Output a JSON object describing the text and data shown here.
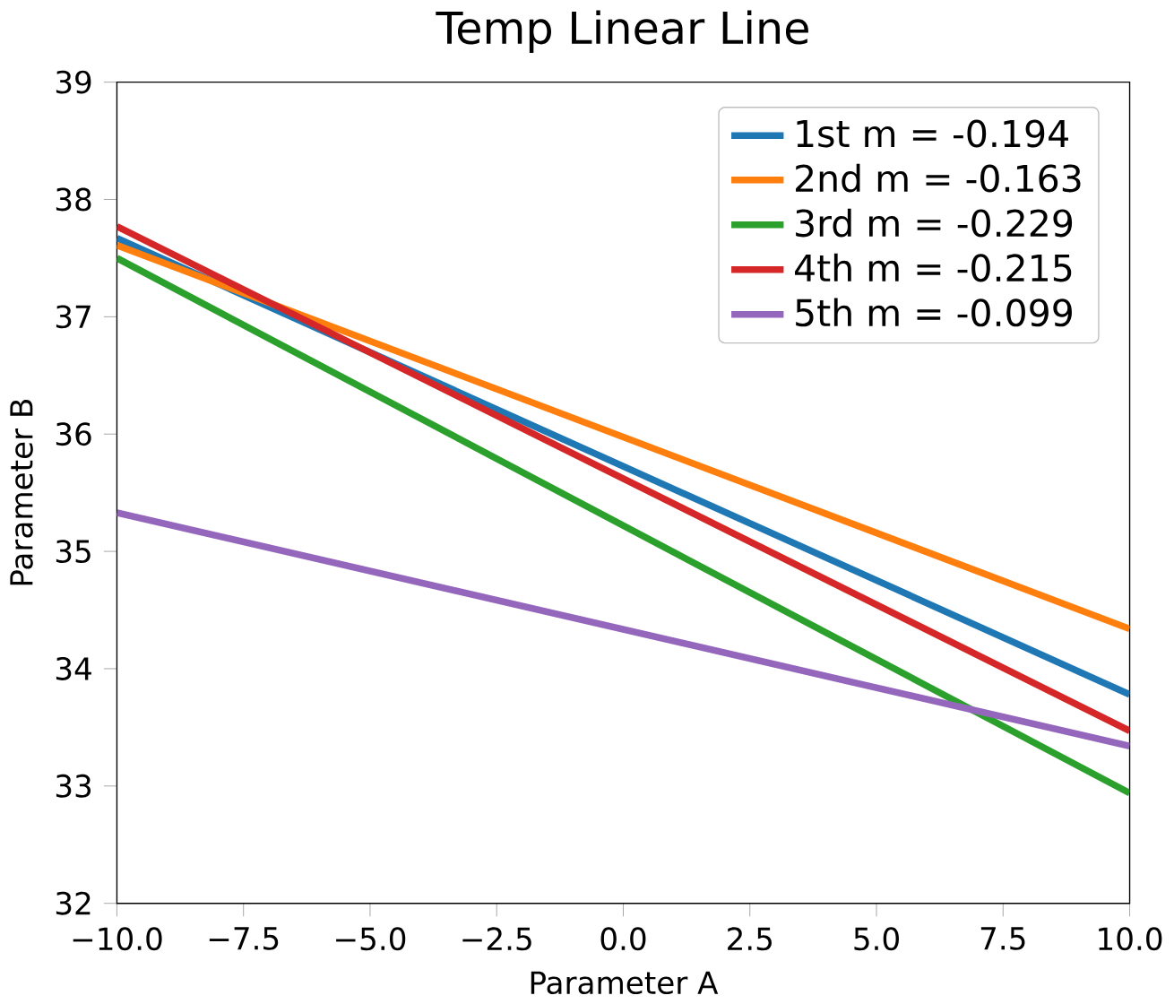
{
  "chart_data": {
    "type": "line",
    "title": "Temp Linear Line",
    "xlabel": "Parameter A",
    "ylabel": "Parameter B",
    "x": [
      -10,
      10
    ],
    "series": [
      {
        "name": "1st m = -0.194",
        "color": "#1f77b4",
        "values": [
          37.67,
          33.78
        ]
      },
      {
        "name": "2nd m = -0.163",
        "color": "#ff7f0e",
        "values": [
          37.61,
          34.34
        ]
      },
      {
        "name": "3rd m = -0.229",
        "color": "#2ca02c",
        "values": [
          37.5,
          32.94
        ]
      },
      {
        "name": "4th m = -0.215",
        "color": "#d62728",
        "values": [
          37.77,
          33.47
        ]
      },
      {
        "name": "5th m = -0.099",
        "color": "#9467bd",
        "values": [
          35.33,
          33.34
        ]
      }
    ],
    "xlim": [
      -10,
      10
    ],
    "ylim": [
      32,
      39
    ],
    "xticks": [
      {
        "value": -10,
        "label": "−10.0"
      },
      {
        "value": -7.5,
        "label": "−7.5"
      },
      {
        "value": -5,
        "label": "−5.0"
      },
      {
        "value": -2.5,
        "label": "−2.5"
      },
      {
        "value": 0,
        "label": "0.0"
      },
      {
        "value": 2.5,
        "label": "2.5"
      },
      {
        "value": 5,
        "label": "5.0"
      },
      {
        "value": 7.5,
        "label": "7.5"
      },
      {
        "value": 10,
        "label": "10.0"
      }
    ],
    "yticks": [
      32,
      33,
      34,
      35,
      36,
      37,
      38,
      39
    ],
    "legend": "top right",
    "grid": false,
    "marker": "none",
    "line_style": "solid"
  }
}
